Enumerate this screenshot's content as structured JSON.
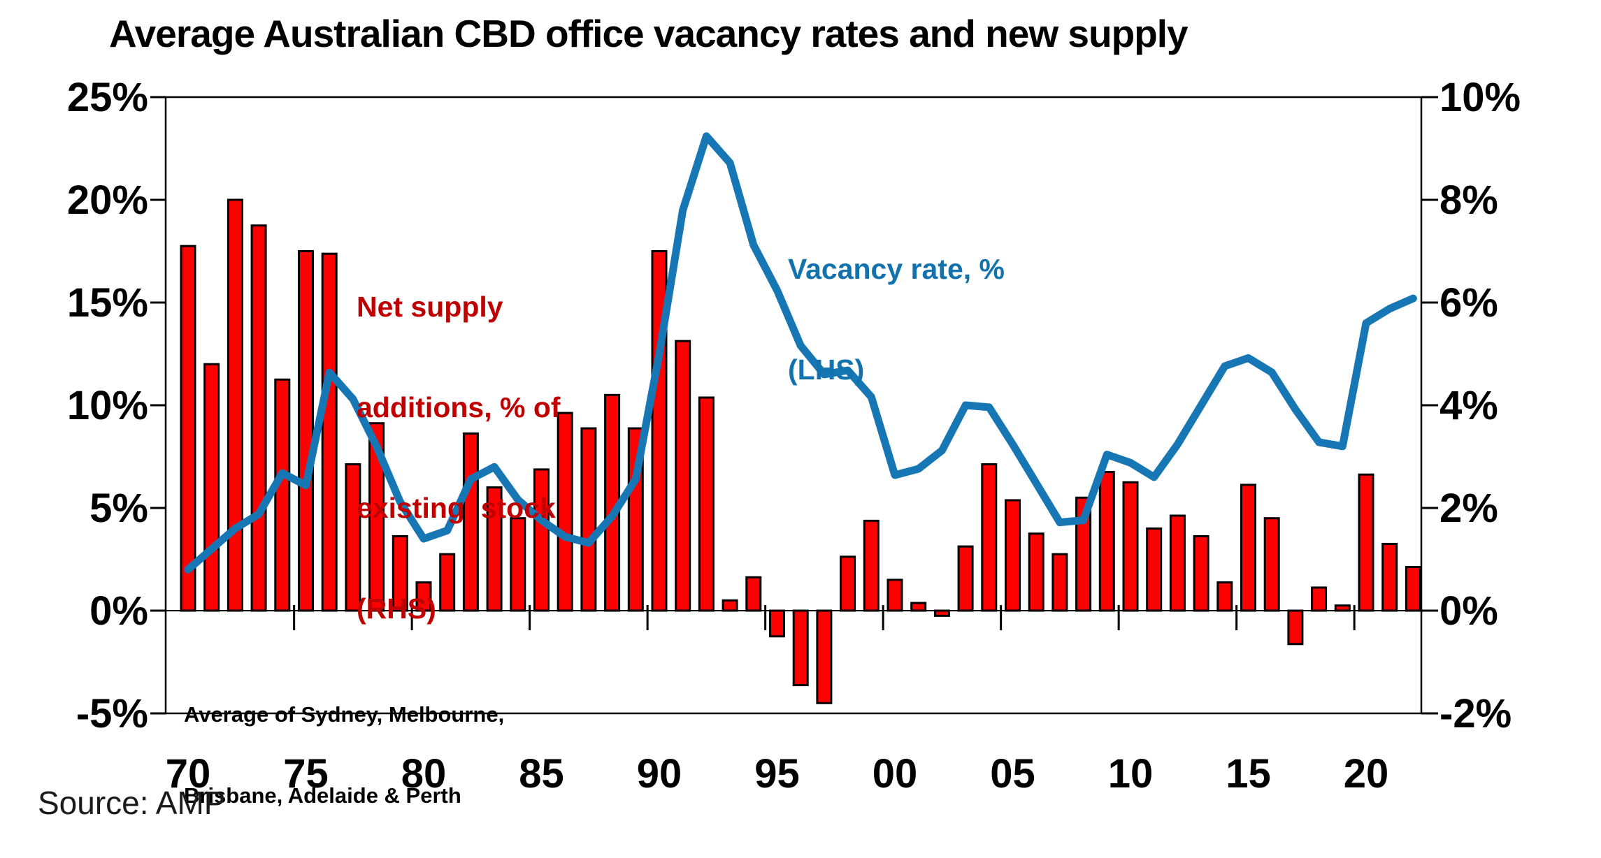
{
  "title": "Average Australian CBD office vacancy rates and new supply",
  "source_text": "Source: AMP",
  "annotation": {
    "line1": "Average of Sydney, Melbourne,",
    "line2": "Brisbane, Adelaide & Perth"
  },
  "bar_legend": {
    "line1": "Net supply",
    "line2": "additions, % of",
    "line3": "existing  stock",
    "line4": "(RHS)",
    "color": "#C00000"
  },
  "line_legend": {
    "line1": "Vacancy rate, %",
    "line2": "(LHS)",
    "color": "#1172AE"
  },
  "axes": {
    "left_labels": [
      "25%",
      "20%",
      "15%",
      "10%",
      "5%",
      "0%",
      "-5%"
    ],
    "left_values": [
      25,
      20,
      15,
      10,
      5,
      0,
      -5
    ],
    "right_labels": [
      "10%",
      "8%",
      "6%",
      "4%",
      "2%",
      "0%",
      "-2%"
    ],
    "right_values": [
      10,
      8,
      6,
      4,
      2,
      0,
      -2
    ],
    "x_labels": [
      "70",
      "75",
      "80",
      "85",
      "90",
      "95",
      "00",
      "05",
      "10",
      "15",
      "20"
    ],
    "x_label_years": [
      1970,
      1975,
      1980,
      1985,
      1990,
      1995,
      2000,
      2005,
      2010,
      2015,
      2020
    ],
    "x_tick_years": [
      1974.5,
      1979.5,
      1984.5,
      1989.5,
      1994.5,
      1999.5,
      2004.5,
      2009.5,
      2014.5,
      2019.5
    ]
  },
  "chart_data": {
    "type": "bar+line dual-axis",
    "title": "Average Australian CBD office vacancy rates and new supply",
    "x": [
      1970,
      1971,
      1972,
      1973,
      1974,
      1975,
      1976,
      1977,
      1978,
      1979,
      1980,
      1981,
      1982,
      1983,
      1984,
      1985,
      1986,
      1987,
      1988,
      1989,
      1990,
      1991,
      1992,
      1993,
      1994,
      1995,
      1996,
      1997,
      1998,
      1999,
      2000,
      2001,
      2002,
      2003,
      2004,
      2005,
      2006,
      2007,
      2008,
      2009,
      2010,
      2011,
      2012,
      2013,
      2014,
      2015,
      2016,
      2017,
      2018,
      2019,
      2020,
      2021,
      2022
    ],
    "series": [
      {
        "name": "Net supply additions, % of existing stock (RHS)",
        "type": "bar",
        "axis": "right",
        "color": "#FF0000",
        "outline": "#000000",
        "values": [
          7.1,
          4.8,
          8.0,
          7.5,
          4.5,
          7.0,
          6.95,
          2.85,
          3.65,
          1.45,
          0.55,
          1.1,
          3.45,
          2.4,
          1.8,
          2.75,
          3.85,
          3.55,
          4.2,
          3.55,
          7.0,
          5.25,
          4.15,
          0.2,
          0.65,
          -0.5,
          -1.45,
          -1.8,
          1.05,
          1.75,
          0.6,
          0.15,
          -0.1,
          1.25,
          2.85,
          2.15,
          1.5,
          1.1,
          2.2,
          2.7,
          2.5,
          1.6,
          1.85,
          1.45,
          0.55,
          2.45,
          1.8,
          -0.65,
          0.45,
          0.1,
          2.65,
          1.3,
          0.85
        ]
      },
      {
        "name": "Vacancy rate, % (LHS)",
        "type": "line",
        "axis": "left",
        "color": "#1777B5",
        "values": [
          2.0,
          3.0,
          4.0,
          4.7,
          6.7,
          6.1,
          11.6,
          10.3,
          8.0,
          5.3,
          3.5,
          3.9,
          6.4,
          7.0,
          5.4,
          4.4,
          3.6,
          3.3,
          4.6,
          6.4,
          12.5,
          19.5,
          23.1,
          21.8,
          17.8,
          15.6,
          12.9,
          11.5,
          11.7,
          10.4,
          6.6,
          6.9,
          7.8,
          10.0,
          9.9,
          8.1,
          6.2,
          4.3,
          4.4,
          7.6,
          7.2,
          6.5,
          8.1,
          10.0,
          11.9,
          12.3,
          11.6,
          9.8,
          8.2,
          8.0,
          14.0,
          14.7,
          15.2
        ]
      }
    ],
    "left_ylim": [
      -5,
      25
    ],
    "right_ylim": [
      -2,
      10
    ],
    "grid": false,
    "legend_position": "text annotations inside plot area"
  }
}
